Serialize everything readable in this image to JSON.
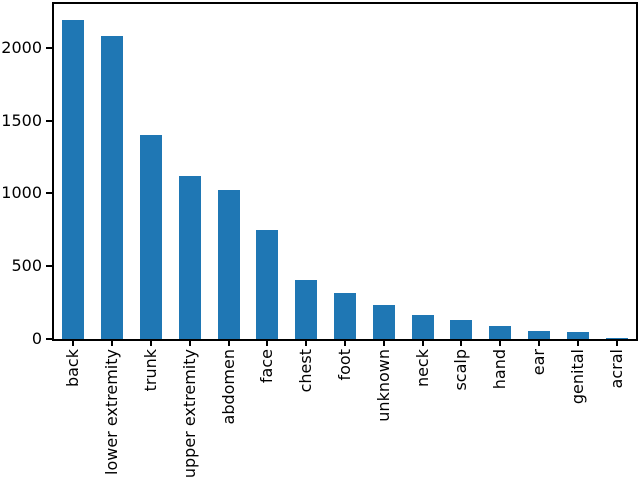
{
  "figure": {
    "background": "#ffffff",
    "spine_color": "#000000",
    "text_color": "#000000"
  },
  "chart_data": {
    "type": "bar",
    "title": "",
    "xlabel": "",
    "ylabel": "",
    "categories": [
      "back",
      "lower extremity",
      "trunk",
      "upper extremity",
      "abdomen",
      "face",
      "chest",
      "foot",
      "unknown",
      "neck",
      "scalp",
      "hand",
      "ear",
      "genital",
      "acral"
    ],
    "values": [
      2192,
      2077,
      1404,
      1118,
      1022,
      745,
      407,
      319,
      234,
      168,
      128,
      90,
      56,
      48,
      7
    ],
    "yticks": [
      0,
      500,
      1000,
      1500,
      2000
    ],
    "ytick_labels": [
      "0",
      "500",
      "1000",
      "1500",
      "2000"
    ],
    "ylim": [
      0,
      2300
    ],
    "bar_color": "#1f77b4",
    "grid": false,
    "legend": null,
    "x_tick_rotation": 90
  }
}
